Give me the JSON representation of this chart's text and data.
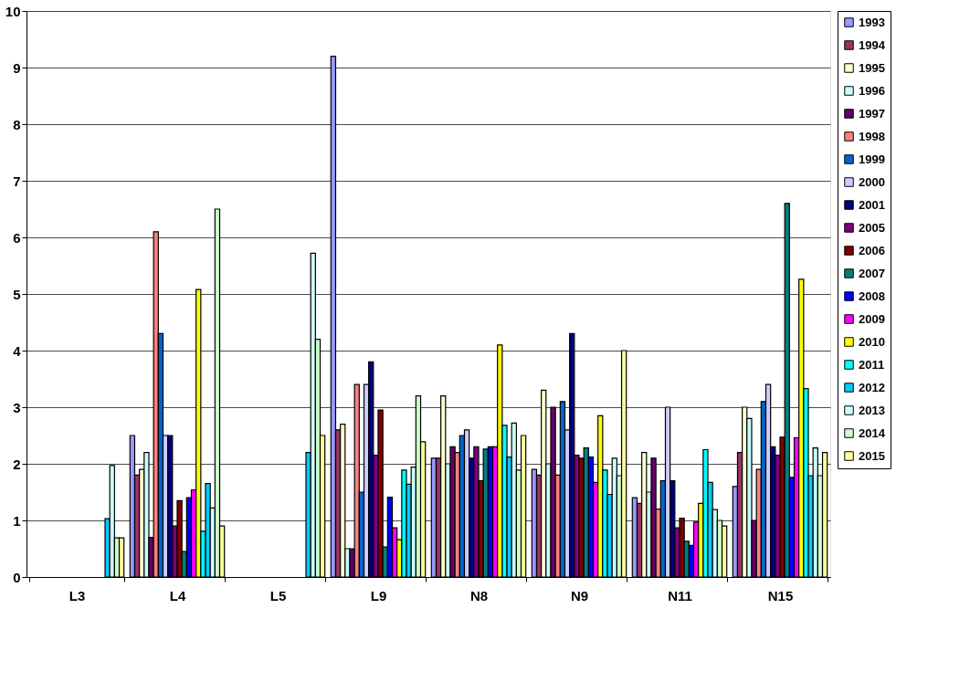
{
  "chart_data": {
    "type": "bar",
    "categories": [
      "L3",
      "L4",
      "L5",
      "L9",
      "N8",
      "N9",
      "N11",
      "N15"
    ],
    "ylim": [
      0,
      10
    ],
    "yticks": [
      0,
      1,
      2,
      3,
      4,
      5,
      6,
      7,
      8,
      9,
      10
    ],
    "grid": "y",
    "legend": "right",
    "series": [
      {
        "name": "1993",
        "color": "#9999ff",
        "values": [
          null,
          2.5,
          null,
          9.2,
          2.1,
          1.9,
          1.4,
          1.6
        ]
      },
      {
        "name": "1994",
        "color": "#993366",
        "values": [
          null,
          1.8,
          null,
          2.6,
          2.1,
          1.8,
          1.3,
          2.2
        ]
      },
      {
        "name": "1995",
        "color": "#ffffcc",
        "values": [
          null,
          1.9,
          null,
          2.7,
          3.2,
          3.3,
          2.2,
          3.0
        ]
      },
      {
        "name": "1996",
        "color": "#ccffff",
        "values": [
          null,
          2.2,
          null,
          0.5,
          2.0,
          2.0,
          1.5,
          2.8
        ]
      },
      {
        "name": "1997",
        "color": "#660066",
        "values": [
          null,
          0.7,
          null,
          0.5,
          2.3,
          3.0,
          2.1,
          1.0
        ]
      },
      {
        "name": "1998",
        "color": "#ff8080",
        "values": [
          null,
          6.1,
          null,
          3.4,
          2.2,
          1.8,
          1.2,
          1.9
        ]
      },
      {
        "name": "1999",
        "color": "#0066cc",
        "values": [
          null,
          4.3,
          null,
          1.5,
          2.5,
          3.1,
          1.7,
          3.1
        ]
      },
      {
        "name": "2000",
        "color": "#ccccff",
        "values": [
          null,
          2.5,
          null,
          3.4,
          2.6,
          2.6,
          3.0,
          3.4
        ]
      },
      {
        "name": "2001",
        "color": "#000080",
        "values": [
          null,
          2.5,
          null,
          3.8,
          2.1,
          4.3,
          1.7,
          2.3
        ]
      },
      {
        "name": "2005",
        "color": "#800080",
        "values": [
          null,
          0.9,
          null,
          2.15,
          2.3,
          2.15,
          0.87,
          2.15
        ]
      },
      {
        "name": "2006",
        "color": "#800000",
        "values": [
          null,
          1.35,
          null,
          2.95,
          1.7,
          2.1,
          1.04,
          2.47
        ]
      },
      {
        "name": "2007",
        "color": "#008080",
        "values": [
          null,
          0.45,
          null,
          0.53,
          2.26,
          2.28,
          0.63,
          6.6
        ]
      },
      {
        "name": "2008",
        "color": "#0000ff",
        "values": [
          null,
          1.4,
          null,
          1.41,
          2.3,
          2.12,
          0.56,
          1.76
        ]
      },
      {
        "name": "2009",
        "color": "#ff00ff",
        "values": [
          null,
          1.54,
          null,
          0.87,
          2.3,
          1.67,
          0.97,
          2.46
        ]
      },
      {
        "name": "2010",
        "color": "#ffff00",
        "values": [
          null,
          5.08,
          null,
          0.66,
          4.1,
          2.85,
          1.3,
          5.26
        ]
      },
      {
        "name": "2011",
        "color": "#00ffff",
        "values": [
          null,
          0.81,
          null,
          1.89,
          2.68,
          1.89,
          2.25,
          3.33
        ]
      },
      {
        "name": "2012",
        "color": "#00ccff",
        "values": [
          1.03,
          1.65,
          2.2,
          1.64,
          2.12,
          1.46,
          1.67,
          1.79
        ]
      },
      {
        "name": "2013",
        "color": "#ccffff",
        "values": [
          1.97,
          1.22,
          5.72,
          1.94,
          2.72,
          2.1,
          1.19,
          2.28
        ]
      },
      {
        "name": "2014",
        "color": "#ccffcc",
        "values": [
          0.69,
          6.5,
          4.2,
          3.2,
          1.89,
          1.79,
          1.0,
          1.79
        ]
      },
      {
        "name": "2015",
        "color": "#ffff99",
        "values": [
          0.69,
          0.9,
          2.5,
          2.39,
          2.5,
          4.0,
          0.9,
          2.2
        ]
      }
    ]
  }
}
